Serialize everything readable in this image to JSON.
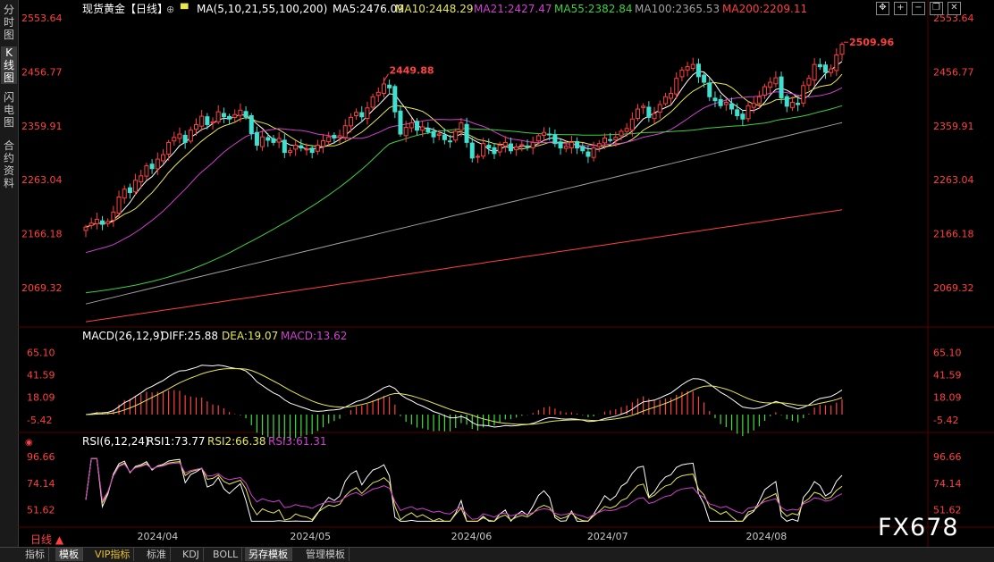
{
  "side_tabs": [
    {
      "label": "分时图",
      "active": false
    },
    {
      "label": "K线图",
      "active": true
    },
    {
      "label": "闪电图",
      "active": false
    },
    {
      "label": "合约资料",
      "active": false
    }
  ],
  "main_panel": {
    "legend_title": "现货黄金【日线】",
    "ma_label": "MA(5,10,21,55,100,200)",
    "ma_values": [
      {
        "text": "MA5:2476.09",
        "color": "#ffffff"
      },
      {
        "text": "MA10:2448.29",
        "color": "#e8e850"
      },
      {
        "text": "MA21:2427.47",
        "color": "#d040d0"
      },
      {
        "text": "MA55:2382.84",
        "color": "#40d040"
      },
      {
        "text": "MA100:2365.53",
        "color": "#a0a0a0"
      },
      {
        "text": "MA200:2209.11",
        "color": "#ff4040"
      }
    ],
    "annotations": [
      {
        "text": "2509.96",
        "x": 2509.96
      },
      {
        "text": "2449.88",
        "x": 2449.88
      }
    ]
  },
  "macd_panel": {
    "label": "MACD(26,12,9)",
    "values": [
      {
        "text": "DIFF:25.88",
        "color": "#ffffff"
      },
      {
        "text": "DEA:19.07",
        "color": "#e8e850"
      },
      {
        "text": "MACD:13.62",
        "color": "#d040d0"
      }
    ]
  },
  "rsi_panel": {
    "label": "RSI(6,12,24)",
    "values": [
      {
        "text": "RSI1:73.77",
        "color": "#ffffff"
      },
      {
        "text": "RSI2:66.38",
        "color": "#e8e850"
      },
      {
        "text": "RSI3:61.31",
        "color": "#d040d0"
      }
    ]
  },
  "chart_data": {
    "type": "candlestick",
    "instrument": "现货黄金",
    "period": "日线",
    "x_labels": [
      "2024/04",
      "2024/05",
      "2024/06",
      "2024/07",
      "2024/08"
    ],
    "y_ticks": [
      "2553.64",
      "2456.77",
      "2359.91",
      "2263.04",
      "2166.18",
      "2069.32"
    ],
    "ylim": [
      2005,
      2553.64
    ],
    "grid": false,
    "ohlc_close": [
      2178,
      2185,
      2192,
      2183,
      2188,
      2205,
      2232,
      2246,
      2240,
      2262,
      2270,
      2288,
      2283,
      2300,
      2308,
      2330,
      2339,
      2345,
      2330,
      2352,
      2362,
      2377,
      2362,
      2367,
      2385,
      2376,
      2372,
      2380,
      2388,
      2376,
      2346,
      2325,
      2340,
      2334,
      2330,
      2337,
      2312,
      2315,
      2325,
      2320,
      2318,
      2312,
      2325,
      2333,
      2340,
      2338,
      2342,
      2360,
      2375,
      2384,
      2376,
      2392,
      2412,
      2420,
      2435,
      2428,
      2385,
      2345,
      2357,
      2365,
      2352,
      2358,
      2349,
      2340,
      2345,
      2335,
      2332,
      2350,
      2365,
      2330,
      2302,
      2305,
      2328,
      2320,
      2310,
      2325,
      2330,
      2315,
      2322,
      2326,
      2322,
      2330,
      2342,
      2348,
      2344,
      2328,
      2320,
      2323,
      2330,
      2320,
      2315,
      2305,
      2320,
      2328,
      2338,
      2335,
      2339,
      2350,
      2355,
      2372,
      2390,
      2395,
      2375,
      2382,
      2398,
      2412,
      2418,
      2445,
      2460,
      2466,
      2470,
      2448,
      2438,
      2412,
      2405,
      2396,
      2402,
      2390,
      2378,
      2372,
      2396,
      2400,
      2412,
      2430,
      2438,
      2446,
      2410,
      2395,
      2402,
      2398,
      2432,
      2445,
      2470,
      2466,
      2456,
      2462,
      2487,
      2506
    ],
    "ma_series": [
      "MA5",
      "MA10",
      "MA21",
      "MA55",
      "MA100",
      "MA200"
    ],
    "macd": {
      "ticks": [
        "65.10",
        "41.59",
        "18.09",
        "-5.42"
      ],
      "ylim": [
        -15,
        75
      ],
      "diff": 25.88,
      "dea": 19.07,
      "macd": 13.62
    },
    "rsi": {
      "ticks": [
        "96.66",
        "74.14",
        "51.62"
      ],
      "ylim": [
        40,
        105
      ],
      "rsi1": 73.77,
      "rsi2": 66.38,
      "rsi3": 61.31
    }
  },
  "period_label": "日线 ▲",
  "bottom_tabs": [
    {
      "label": "指标",
      "active": false,
      "vip": false
    },
    {
      "label": "模板",
      "active": true,
      "vip": false
    },
    {
      "label": "VIP指标",
      "active": false,
      "vip": true
    },
    {
      "label": "标准",
      "active": false,
      "vip": false
    },
    {
      "label": "KDJ",
      "active": false,
      "vip": false
    },
    {
      "label": "BOLL",
      "active": false,
      "vip": false
    },
    {
      "label": "另存模板",
      "active": true,
      "vip": false
    },
    {
      "label": "管理模板",
      "active": false,
      "vip": false
    }
  ],
  "watermark": "FX678",
  "window_tool_icons": [
    "move-icon",
    "zoom-in-icon",
    "zoom-out-icon",
    "restore-icon",
    "close-icon"
  ],
  "colors": {
    "up": "#ff4040",
    "down": "#40e0d0",
    "macd_up": "#ff4040",
    "macd_down": "#40e040"
  }
}
